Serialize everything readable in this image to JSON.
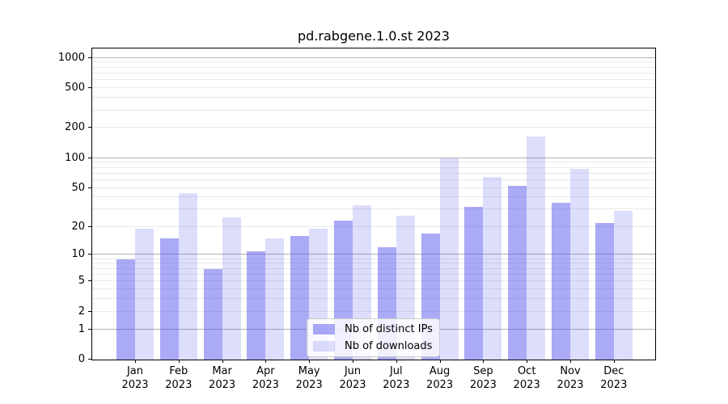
{
  "chart_data": {
    "type": "bar",
    "title": "pd.rabgene.1.0.st 2023",
    "categories": [
      "Jan",
      "Feb",
      "Mar",
      "Apr",
      "May",
      "Jun",
      "Jul",
      "Aug",
      "Sep",
      "Oct",
      "Nov",
      "Dec"
    ],
    "category_year": "2023",
    "series": [
      {
        "name": "Nb of distinct IPs",
        "color": "#5555ee",
        "alpha": 0.5,
        "values": [
          9,
          15,
          7,
          11,
          16,
          23,
          12,
          17,
          32,
          53,
          35,
          22
        ]
      },
      {
        "name": "Nb of downloads",
        "color": "#5555ee",
        "alpha": 0.2,
        "values": [
          19,
          44,
          25,
          15,
          19,
          33,
          26,
          100,
          65,
          165,
          78,
          29
        ]
      }
    ],
    "xlabel": "",
    "ylabel": "",
    "y_scale": "log10(1+x)",
    "y_ticks": [
      0,
      1,
      2,
      5,
      10,
      20,
      50,
      100,
      200,
      500,
      1000
    ],
    "ylim": [
      0,
      1290
    ],
    "grid": {
      "major_lines": [
        1,
        10,
        100,
        1000
      ],
      "minor_multipliers": [
        2,
        3,
        4,
        5,
        6,
        7,
        8,
        9
      ]
    },
    "legend_position": "lower-center-inside"
  },
  "style": {
    "background": "#ffffff",
    "axis_color": "#000000",
    "grid_major_color": "#b1b1b1",
    "grid_minor_color": "#e9e9e9",
    "bar_base_color": "#5555ee",
    "legend_edge_color": "#cccccc"
  }
}
